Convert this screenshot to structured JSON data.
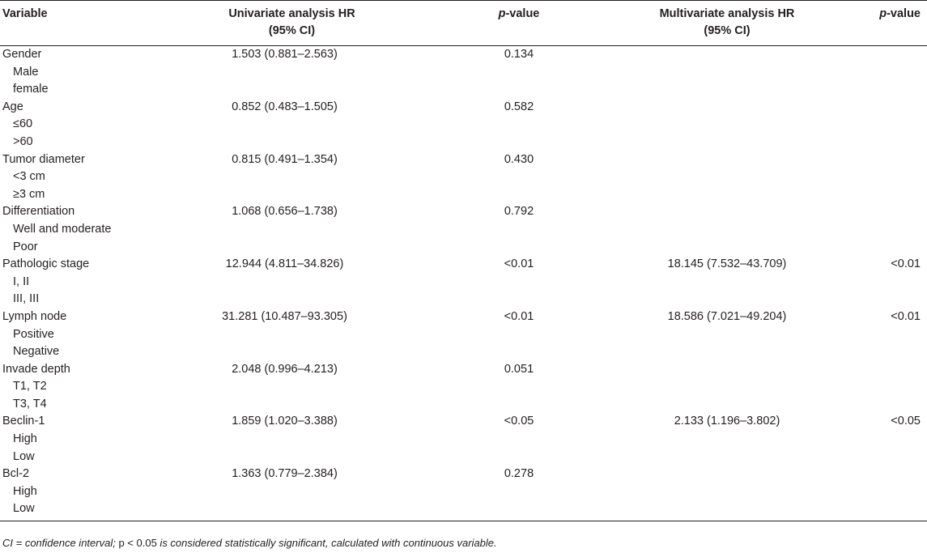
{
  "header": {
    "variable": "Variable",
    "univariate_hr_line1": "Univariate analysis HR",
    "univariate_hr_line2": "(95% CI)",
    "univariate_p_italic": "p",
    "univariate_p_rest": "-value",
    "multivariate_hr_line1": "Multivariate analysis HR",
    "multivariate_hr_line2": "(95% CI)",
    "multivariate_p_italic": "p",
    "multivariate_p_rest": "-value"
  },
  "rows": [
    {
      "variable": "Gender",
      "sub": false,
      "uni_hr": "1.503 (0.881–2.563)",
      "uni_p": "0.134",
      "multi_hr": "",
      "multi_p": ""
    },
    {
      "variable": "Male",
      "sub": true,
      "uni_hr": "",
      "uni_p": "",
      "multi_hr": "",
      "multi_p": ""
    },
    {
      "variable": "female",
      "sub": true,
      "uni_hr": "",
      "uni_p": "",
      "multi_hr": "",
      "multi_p": ""
    },
    {
      "variable": "Age",
      "sub": false,
      "uni_hr": "0.852 (0.483–1.505)",
      "uni_p": "0.582",
      "multi_hr": "",
      "multi_p": ""
    },
    {
      "variable": "≤60",
      "sub": true,
      "uni_hr": "",
      "uni_p": "",
      "multi_hr": "",
      "multi_p": ""
    },
    {
      "variable": ">60",
      "sub": true,
      "uni_hr": "",
      "uni_p": "",
      "multi_hr": "",
      "multi_p": ""
    },
    {
      "variable": "Tumor diameter",
      "sub": false,
      "uni_hr": "0.815 (0.491–1.354)",
      "uni_p": "0.430",
      "multi_hr": "",
      "multi_p": ""
    },
    {
      "variable": "<3 cm",
      "sub": true,
      "uni_hr": "",
      "uni_p": "",
      "multi_hr": "",
      "multi_p": ""
    },
    {
      "variable": "≥3 cm",
      "sub": true,
      "uni_hr": "",
      "uni_p": "",
      "multi_hr": "",
      "multi_p": ""
    },
    {
      "variable": "Differentiation",
      "sub": false,
      "uni_hr": "1.068 (0.656–1.738)",
      "uni_p": "0.792",
      "multi_hr": "",
      "multi_p": ""
    },
    {
      "variable": "Well and moderate",
      "sub": true,
      "uni_hr": "",
      "uni_p": "",
      "multi_hr": "",
      "multi_p": ""
    },
    {
      "variable": "Poor",
      "sub": true,
      "uni_hr": "",
      "uni_p": "",
      "multi_hr": "",
      "multi_p": ""
    },
    {
      "variable": "Pathologic stage",
      "sub": false,
      "uni_hr": "12.944 (4.811–34.826)",
      "uni_p": "<0.01",
      "multi_hr": "18.145 (7.532–43.709)",
      "multi_p": "<0.01"
    },
    {
      "variable": "I, II",
      "sub": true,
      "uni_hr": "",
      "uni_p": "",
      "multi_hr": "",
      "multi_p": ""
    },
    {
      "variable": "III, III",
      "sub": true,
      "uni_hr": "",
      "uni_p": "",
      "multi_hr": "",
      "multi_p": ""
    },
    {
      "variable": "Lymph node",
      "sub": false,
      "uni_hr": "31.281 (10.487–93.305)",
      "uni_p": "<0.01",
      "multi_hr": "18.586 (7.021–49.204)",
      "multi_p": "<0.01"
    },
    {
      "variable": "Positive",
      "sub": true,
      "uni_hr": "",
      "uni_p": "",
      "multi_hr": "",
      "multi_p": ""
    },
    {
      "variable": "Negative",
      "sub": true,
      "uni_hr": "",
      "uni_p": "",
      "multi_hr": "",
      "multi_p": ""
    },
    {
      "variable": "Invade depth",
      "sub": false,
      "uni_hr": "2.048 (0.996–4.213)",
      "uni_p": "0.051",
      "multi_hr": "",
      "multi_p": ""
    },
    {
      "variable": "T1, T2",
      "sub": true,
      "uni_hr": "",
      "uni_p": "",
      "multi_hr": "",
      "multi_p": ""
    },
    {
      "variable": "T3, T4",
      "sub": true,
      "uni_hr": "",
      "uni_p": "",
      "multi_hr": "",
      "multi_p": ""
    },
    {
      "variable": "Beclin-1",
      "sub": false,
      "uni_hr": "1.859 (1.020–3.388)",
      "uni_p": "<0.05",
      "multi_hr": "2.133 (1.196–3.802)",
      "multi_p": "<0.05"
    },
    {
      "variable": "High",
      "sub": true,
      "uni_hr": "",
      "uni_p": "",
      "multi_hr": "",
      "multi_p": ""
    },
    {
      "variable": "Low",
      "sub": true,
      "uni_hr": "",
      "uni_p": "",
      "multi_hr": "",
      "multi_p": ""
    },
    {
      "variable": "Bcl-2",
      "sub": false,
      "uni_hr": "1.363 (0.779–2.384)",
      "uni_p": "0.278",
      "multi_hr": "",
      "multi_p": ""
    },
    {
      "variable": "High",
      "sub": true,
      "uni_hr": "",
      "uni_p": "",
      "multi_hr": "",
      "multi_p": ""
    },
    {
      "variable": "Low",
      "sub": true,
      "uni_hr": "",
      "uni_p": "",
      "multi_hr": "",
      "multi_p": ""
    }
  ],
  "footnote": {
    "part1": "CI = confidence interval; ",
    "part2": "p < 0.05",
    "part3": " is considered statistically significant, calculated with continuous variable."
  }
}
